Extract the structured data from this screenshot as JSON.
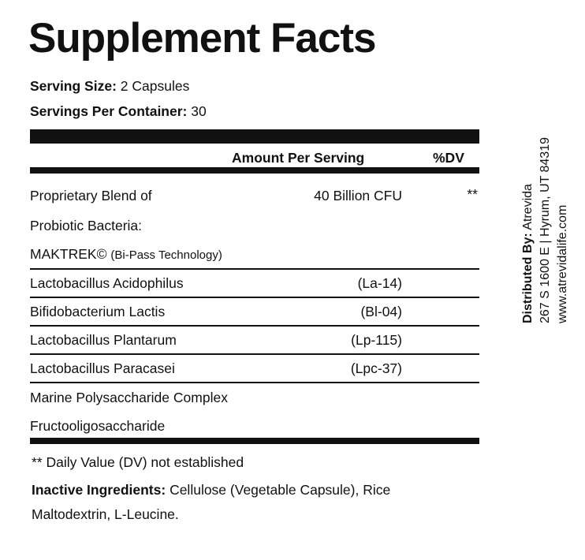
{
  "title": "Supplement Facts",
  "serving_size": {
    "label": "Serving Size:",
    "value": "2 Capsules"
  },
  "servings_per_container": {
    "label": "Servings Per Container:",
    "value": "30"
  },
  "header": {
    "amount": "Amount Per Serving",
    "dv": "%DV"
  },
  "blend": {
    "line1": "Proprietary Blend of",
    "line2": "Probiotic Bacteria:",
    "line3_main": "MAKTREK©",
    "line3_note": "(Bi-Pass Technology)",
    "amount": "40 Billion CFU",
    "dv": "**"
  },
  "strains": [
    {
      "name": "Lactobacillus Acidophilus",
      "code": "(La-14)"
    },
    {
      "name": "Bifidobacterium Lactis",
      "code": "(Bl-04)"
    },
    {
      "name": "Lactobacillus Plantarum",
      "code": "(Lp-115)"
    },
    {
      "name": "Lactobacillus Paracasei",
      "code": "(Lpc-37)"
    }
  ],
  "other": [
    "Marine Polysaccharide Complex",
    "Fructooligosaccharide"
  ],
  "footnote": "** Daily Value (DV) not established",
  "inactive": {
    "label": "Inactive Ingredients:",
    "line1": "Cellulose (Vegetable  Capsule), Rice",
    "line2": "Maltodextrin, L-Leucine."
  },
  "distributor": {
    "label": "Distributed By:",
    "name": "Atrevida",
    "address": "267 S 1600 E | Hyrum, UT 84319",
    "website": "www.atrevidalife.com"
  }
}
